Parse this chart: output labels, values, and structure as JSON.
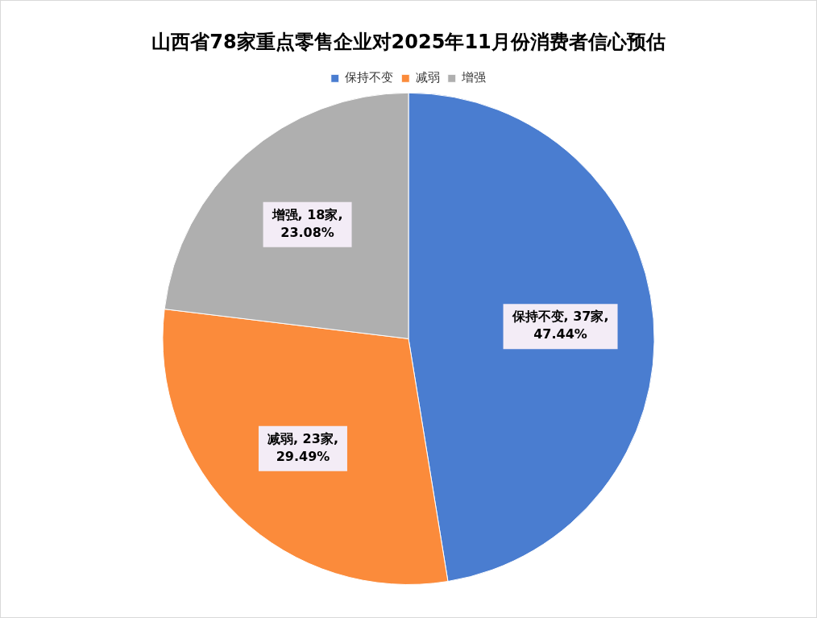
{
  "chart_data": {
    "type": "pie",
    "title": "山西省78家重点零售企业对2025年11月份消费者信心预估",
    "categories": [
      "保持不变",
      "减弱",
      "增强"
    ],
    "values": [
      37,
      23,
      18
    ],
    "colors": [
      "#4a7dd0",
      "#fb8b3b",
      "#afafaf"
    ],
    "value_labels": [
      "保持不变, 37家, 47.44%",
      "减弱, 23家, 29.49%",
      "增强, 18家, 23.08%"
    ],
    "legend": "top"
  }
}
